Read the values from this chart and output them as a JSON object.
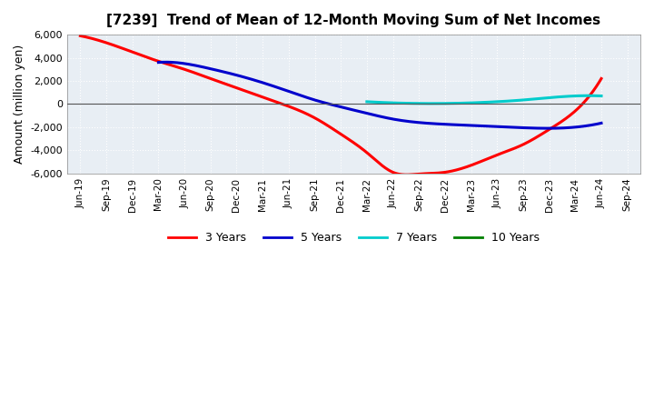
{
  "title": "[7239]  Trend of Mean of 12-Month Moving Sum of Net Incomes",
  "ylabel": "Amount (million yen)",
  "background_color": "#ffffff",
  "plot_bg_color": "#e8eef4",
  "grid_color": "#ffffff",
  "ylim": [
    -6000,
    6000
  ],
  "yticks": [
    -6000,
    -4000,
    -2000,
    0,
    2000,
    4000,
    6000
  ],
  "x_labels": [
    "Jun-19",
    "Sep-19",
    "Dec-19",
    "Mar-20",
    "Jun-20",
    "Sep-20",
    "Dec-20",
    "Mar-21",
    "Jun-21",
    "Sep-21",
    "Dec-21",
    "Mar-22",
    "Jun-22",
    "Sep-22",
    "Dec-22",
    "Mar-23",
    "Jun-23",
    "Sep-23",
    "Dec-23",
    "Mar-24",
    "Jun-24",
    "Sep-24"
  ],
  "series_3yr": {
    "color": "#ff0000",
    "data_x": [
      0,
      1,
      2,
      3,
      4,
      5,
      6,
      7,
      8,
      9,
      10,
      11,
      12,
      13,
      14,
      15,
      16,
      17,
      18,
      19,
      20
    ],
    "data_y": [
      5900,
      5300,
      4500,
      3700,
      3000,
      2200,
      1400,
      600,
      -200,
      -1200,
      -2600,
      -4200,
      -5900,
      -6050,
      -5900,
      -5300,
      -4400,
      -3500,
      -2200,
      -600,
      2200
    ]
  },
  "series_5yr": {
    "color": "#0000cc",
    "data_x": [
      3,
      4,
      5,
      6,
      7,
      8,
      9,
      10,
      11,
      12,
      13,
      14,
      15,
      16,
      17,
      18,
      19,
      20
    ],
    "data_y": [
      3600,
      3500,
      3050,
      2500,
      1850,
      1100,
      350,
      -250,
      -800,
      -1300,
      -1600,
      -1750,
      -1850,
      -1950,
      -2050,
      -2100,
      -2000,
      -1650
    ]
  },
  "series_7yr": {
    "color": "#00cccc",
    "data_x": [
      11,
      12,
      13,
      14,
      15,
      16,
      17,
      18,
      19,
      20
    ],
    "data_y": [
      200,
      100,
      50,
      50,
      100,
      200,
      350,
      550,
      700,
      700
    ]
  },
  "legend_labels": [
    "3 Years",
    "5 Years",
    "7 Years",
    "10 Years"
  ],
  "legend_colors": [
    "#ff0000",
    "#0000cc",
    "#00cccc",
    "#008000"
  ]
}
